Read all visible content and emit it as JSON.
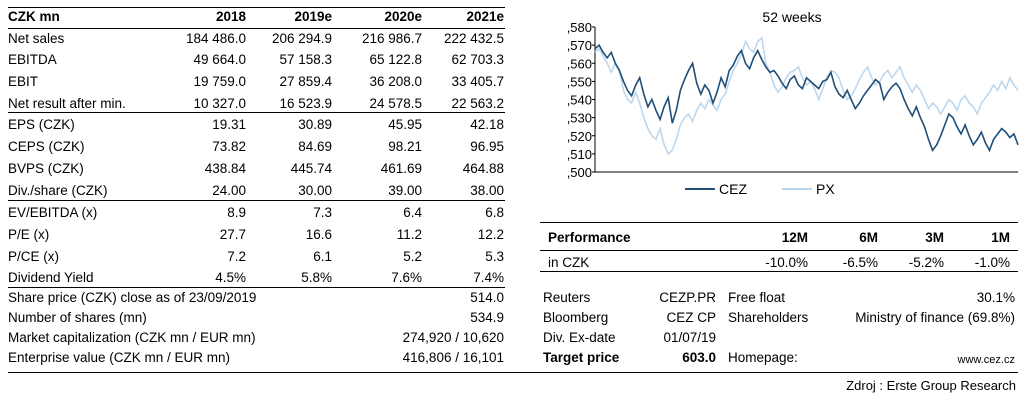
{
  "table": {
    "header": [
      "CZK mn",
      "2018",
      "2019e",
      "2020e",
      "2021e"
    ],
    "rows": [
      [
        "Net sales",
        "184 486.0",
        "206 294.9",
        "216 986.7",
        "222 432.5"
      ],
      [
        "EBITDA",
        "49 664.0",
        "57 158.3",
        "65 122.8",
        "62 703.3"
      ],
      [
        "EBIT",
        "19 759.0",
        "27 859.4",
        "36 208.0",
        "33 405.7"
      ],
      [
        "Net result after min.",
        "10 327.0",
        "16 523.9",
        "24 578.5",
        "22 563.2"
      ],
      [
        "EPS (CZK)",
        "19.31",
        "30.89",
        "45.95",
        "42.18"
      ],
      [
        "CEPS (CZK)",
        "73.82",
        "84.69",
        "98.21",
        "96.95"
      ],
      [
        "BVPS (CZK)",
        "438.84",
        "445.74",
        "461.69",
        "464.88"
      ],
      [
        "Div./share (CZK)",
        "24.00",
        "30.00",
        "39.00",
        "38.00"
      ],
      [
        "EV/EBITDA (x)",
        "8.9",
        "7.3",
        "6.4",
        "6.8"
      ],
      [
        "P/E (x)",
        "27.7",
        "16.6",
        "11.2",
        "12.2"
      ],
      [
        "P/CE (x)",
        "7.2",
        "6.1",
        "5.2",
        "5.3"
      ],
      [
        "Dividend Yield",
        "4.5%",
        "5.8%",
        "7.6%",
        "7.4%"
      ]
    ]
  },
  "bottom": {
    "rows": [
      {
        "label": "Share price (CZK) close as of 23/09/2019",
        "value": "514.0"
      },
      {
        "label": "Number of shares (mn)",
        "value": "534.9"
      },
      {
        "label": "Market capitalization (CZK mn / EUR mn)",
        "value": "274,920 / 10,620"
      },
      {
        "label": "Enterprise value (CZK mn / EUR mn)",
        "value": "416,806 / 16,101"
      }
    ]
  },
  "info": {
    "rows": [
      {
        "k": "Reuters",
        "v": "CEZP.PR",
        "k2": "Free float",
        "v2": "30.1%"
      },
      {
        "k": "Bloomberg",
        "v": "CEZ CP",
        "k2": "Shareholders",
        "v2": "Ministry of finance (69.8%)"
      },
      {
        "k": "Div. Ex-date",
        "v": "01/07/19",
        "k2": "",
        "v2": ""
      },
      {
        "k": "Target price",
        "v": "603.0",
        "k2": "Homepage:",
        "v2": "www.cez.cz"
      }
    ]
  },
  "performance": {
    "header": [
      "Performance",
      "12M",
      "6M",
      "3M",
      "1M"
    ],
    "row": [
      "in CZK",
      "-10.0%",
      "-6.5%",
      "-5.2%",
      "-1.0%"
    ]
  },
  "source": "Zdroj : Erste Group Research",
  "colors": {
    "cez": "#1f4e79",
    "px": "#bdd7ee"
  },
  "chart_data": {
    "type": "line",
    "title": "52 weeks",
    "xlabel": "",
    "ylabel": "",
    "y_ticks": [
      ",500",
      ",510",
      ",520",
      ",530",
      ",540",
      ",550",
      ",560",
      ",570",
      ",580"
    ],
    "ylim": [
      500,
      580
    ],
    "grid": false,
    "legend": "bottom",
    "series": [
      {
        "name": "CEZ",
        "values": [
          568,
          570,
          566,
          563,
          566,
          560,
          556,
          550,
          545,
          542,
          548,
          552,
          543,
          536,
          540,
          534,
          529,
          536,
          541,
          527,
          534,
          545,
          551,
          556,
          560,
          549,
          543,
          548,
          545,
          538,
          544,
          552,
          547,
          556,
          559,
          564,
          567,
          560,
          557,
          563,
          567,
          562,
          558,
          555,
          556,
          553,
          549,
          546,
          551,
          553,
          548,
          546,
          552,
          550,
          548,
          546,
          550,
          551,
          555,
          547,
          543,
          541,
          545,
          540,
          535,
          538,
          542,
          545,
          548,
          551,
          549,
          540,
          544,
          547,
          549,
          546,
          540,
          535,
          531,
          536,
          530,
          525,
          518,
          512,
          515,
          520,
          526,
          532,
          530,
          525,
          521,
          526,
          520,
          515,
          518,
          522,
          516,
          512,
          518,
          521,
          524,
          522,
          519,
          521,
          515
        ]
      },
      {
        "name": "PX",
        "values": [
          566,
          568,
          564,
          560,
          555,
          560,
          556,
          545,
          540,
          538,
          544,
          538,
          530,
          524,
          520,
          518,
          524,
          515,
          510,
          512,
          518,
          526,
          530,
          532,
          528,
          534,
          538,
          535,
          540,
          537,
          534,
          540,
          543,
          550,
          556,
          560,
          565,
          572,
          568,
          566,
          572,
          574,
          560,
          555,
          548,
          544,
          547,
          552,
          555,
          556,
          558,
          552,
          548,
          550,
          546,
          540,
          546,
          552,
          556,
          555,
          552,
          545,
          540,
          542,
          546,
          551,
          555,
          558,
          552,
          548,
          550,
          554,
          556,
          552,
          555,
          558,
          552,
          548,
          544,
          548,
          545,
          540,
          535,
          538,
          536,
          532,
          536,
          540,
          538,
          534,
          540,
          542,
          538,
          536,
          532,
          538,
          541,
          544,
          548,
          545,
          550,
          546,
          552,
          548,
          545
        ]
      }
    ]
  }
}
